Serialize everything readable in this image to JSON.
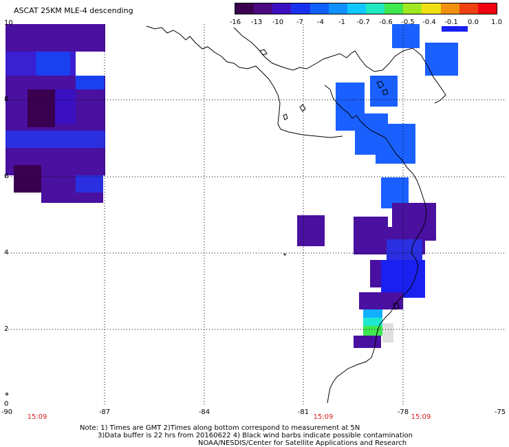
{
  "header": {
    "title": "ASCAT 25KM MLE-4 descending"
  },
  "colorbar": {
    "colors": [
      "#3a0050",
      "#4a0a80",
      "#3a10c0",
      "#1a30f0",
      "#1060ff",
      "#1090ff",
      "#10c8ff",
      "#20e8c0",
      "#40e850",
      "#a0e820",
      "#f0e010",
      "#f09010",
      "#f04010",
      "#f00010"
    ],
    "ticks": [
      "-16",
      "-13",
      "-10",
      "-7",
      "-4",
      "-1",
      "-0.7",
      "-0.6",
      "-0.5",
      "-0.4",
      "-0.1",
      "0.0",
      "1.0"
    ]
  },
  "map": {
    "lat_labels": [
      "10",
      "8",
      "6",
      "4",
      "2",
      "0"
    ],
    "lon_labels": [
      "-90",
      "-87",
      "-84",
      "-81",
      "-78",
      "-75"
    ],
    "time_labels": [
      "15:09",
      "15:09",
      "15:09"
    ],
    "colors": {
      "coast": "#000000",
      "grid": "#000000",
      "time": "#d02020"
    }
  },
  "footer": {
    "line1": "Note: 1) Times are GMT 2)Times along bottom correspond to measurement at 5N",
    "line2": "3)Data buffer is 22 hrs from 20160622 4) Black wind barbs indicate possible contamination",
    "line3": "NOAA/NESDIS/Center for Satellite Applications and Research"
  }
}
